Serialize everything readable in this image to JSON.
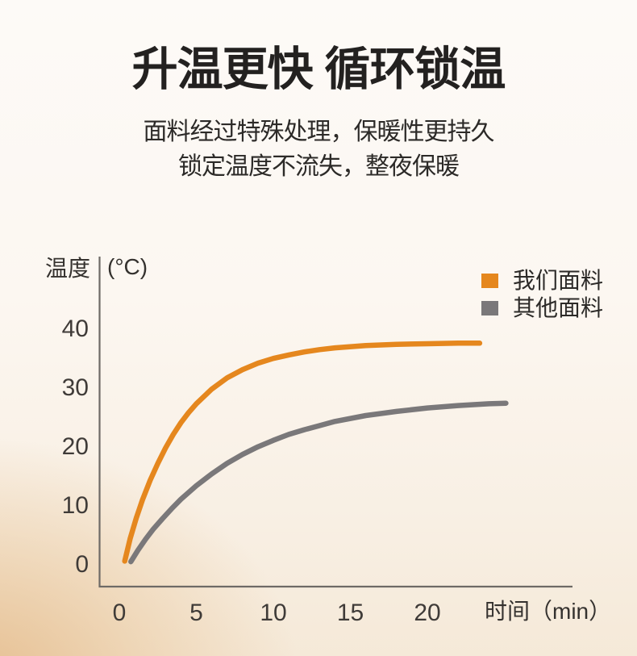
{
  "page": {
    "title": "升温更快 循环锁温",
    "subtitle_line1": "面料经过特殊处理，保暖性更持久",
    "subtitle_line2": "锁定温度不流失，整夜保暖"
  },
  "colors": {
    "title_text": "#232120",
    "body_text": "#2C2A28",
    "axis": "#6E6A66",
    "tick_text": "#3F3B38",
    "our_fabric_orange": "#E5871E",
    "other_fabric_gray": "#7A787A",
    "bg_top": "#FDFAF7",
    "bg_bottom": "#F5E9D8",
    "bg_corner_glow": "#E5BC8C"
  },
  "chart_data": {
    "type": "line",
    "title": "",
    "ylabel": "温度",
    "ylabel_unit": "(°C)",
    "xlabel": "时间（min）",
    "y_ticks": [
      0,
      10,
      20,
      30,
      40
    ],
    "x_ticks": [
      0,
      5,
      10,
      15,
      20
    ],
    "ylim": [
      0,
      40
    ],
    "xlim": [
      0,
      29
    ],
    "grid": false,
    "legend_position": "top-right",
    "series": [
      {
        "name": "我们面料",
        "color": "#E5871E",
        "saturation_temp_c": 37.5,
        "x": [
          0.35,
          0.7,
          1.1,
          1.5,
          2,
          2.5,
          3,
          3.5,
          4,
          4.5,
          5,
          6,
          7,
          8,
          9,
          10,
          11,
          12,
          13,
          14,
          16,
          18,
          20,
          22,
          23.4
        ],
        "y": [
          0.5,
          4.3,
          7.8,
          10.9,
          14.2,
          17.1,
          19.7,
          22.0,
          24.0,
          25.7,
          27.2,
          29.7,
          31.6,
          33.0,
          34.1,
          34.9,
          35.5,
          36.0,
          36.4,
          36.7,
          37.1,
          37.3,
          37.4,
          37.5,
          37.5
        ]
      },
      {
        "name": "其他面料",
        "color": "#7A787A",
        "saturation_temp_c": 27.3,
        "x": [
          0.75,
          1.2,
          1.7,
          2.2,
          2.8,
          3.4,
          4,
          5,
          6,
          7,
          8,
          9,
          10,
          11,
          12,
          13,
          14,
          16,
          18,
          20,
          22,
          24,
          25.1
        ],
        "y": [
          0.4,
          2.3,
          4.2,
          5.9,
          7.7,
          9.4,
          11.0,
          13.3,
          15.3,
          17.1,
          18.6,
          19.9,
          21.0,
          22.0,
          22.8,
          23.5,
          24.2,
          25.2,
          25.9,
          26.5,
          26.9,
          27.2,
          27.3
        ]
      }
    ]
  }
}
